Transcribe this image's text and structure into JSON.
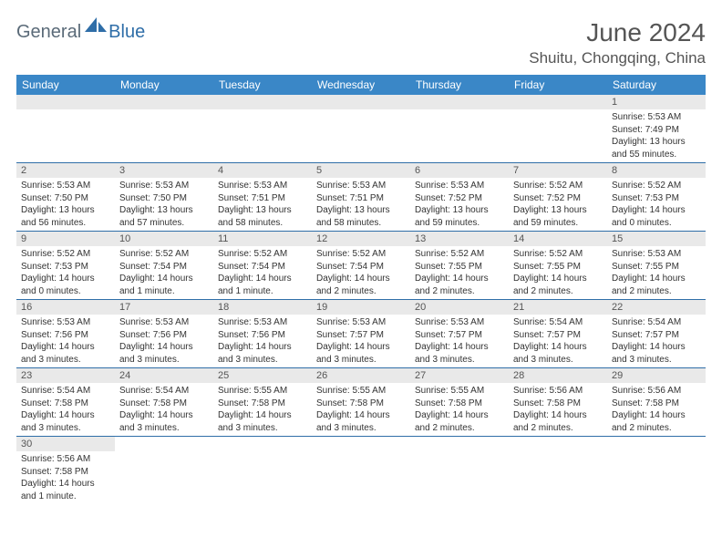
{
  "logo": {
    "text1": "General",
    "text2": "Blue"
  },
  "title": "June 2024",
  "location": "Shuitu, Chongqing, China",
  "colors": {
    "header_bg": "#3a87c7",
    "header_text": "#ffffff",
    "daynum_bg": "#e9e9e9",
    "border": "#2f6ea8",
    "title_color": "#555555",
    "logo_blue": "#2f6ea8",
    "logo_gray": "#5a6a78"
  },
  "weekdays": [
    "Sunday",
    "Monday",
    "Tuesday",
    "Wednesday",
    "Thursday",
    "Friday",
    "Saturday"
  ],
  "weeks": [
    [
      null,
      null,
      null,
      null,
      null,
      null,
      {
        "n": "1",
        "sunrise": "Sunrise: 5:53 AM",
        "sunset": "Sunset: 7:49 PM",
        "daylight": "Daylight: 13 hours and 55 minutes."
      }
    ],
    [
      {
        "n": "2",
        "sunrise": "Sunrise: 5:53 AM",
        "sunset": "Sunset: 7:50 PM",
        "daylight": "Daylight: 13 hours and 56 minutes."
      },
      {
        "n": "3",
        "sunrise": "Sunrise: 5:53 AM",
        "sunset": "Sunset: 7:50 PM",
        "daylight": "Daylight: 13 hours and 57 minutes."
      },
      {
        "n": "4",
        "sunrise": "Sunrise: 5:53 AM",
        "sunset": "Sunset: 7:51 PM",
        "daylight": "Daylight: 13 hours and 58 minutes."
      },
      {
        "n": "5",
        "sunrise": "Sunrise: 5:53 AM",
        "sunset": "Sunset: 7:51 PM",
        "daylight": "Daylight: 13 hours and 58 minutes."
      },
      {
        "n": "6",
        "sunrise": "Sunrise: 5:53 AM",
        "sunset": "Sunset: 7:52 PM",
        "daylight": "Daylight: 13 hours and 59 minutes."
      },
      {
        "n": "7",
        "sunrise": "Sunrise: 5:52 AM",
        "sunset": "Sunset: 7:52 PM",
        "daylight": "Daylight: 13 hours and 59 minutes."
      },
      {
        "n": "8",
        "sunrise": "Sunrise: 5:52 AM",
        "sunset": "Sunset: 7:53 PM",
        "daylight": "Daylight: 14 hours and 0 minutes."
      }
    ],
    [
      {
        "n": "9",
        "sunrise": "Sunrise: 5:52 AM",
        "sunset": "Sunset: 7:53 PM",
        "daylight": "Daylight: 14 hours and 0 minutes."
      },
      {
        "n": "10",
        "sunrise": "Sunrise: 5:52 AM",
        "sunset": "Sunset: 7:54 PM",
        "daylight": "Daylight: 14 hours and 1 minute."
      },
      {
        "n": "11",
        "sunrise": "Sunrise: 5:52 AM",
        "sunset": "Sunset: 7:54 PM",
        "daylight": "Daylight: 14 hours and 1 minute."
      },
      {
        "n": "12",
        "sunrise": "Sunrise: 5:52 AM",
        "sunset": "Sunset: 7:54 PM",
        "daylight": "Daylight: 14 hours and 2 minutes."
      },
      {
        "n": "13",
        "sunrise": "Sunrise: 5:52 AM",
        "sunset": "Sunset: 7:55 PM",
        "daylight": "Daylight: 14 hours and 2 minutes."
      },
      {
        "n": "14",
        "sunrise": "Sunrise: 5:52 AM",
        "sunset": "Sunset: 7:55 PM",
        "daylight": "Daylight: 14 hours and 2 minutes."
      },
      {
        "n": "15",
        "sunrise": "Sunrise: 5:53 AM",
        "sunset": "Sunset: 7:55 PM",
        "daylight": "Daylight: 14 hours and 2 minutes."
      }
    ],
    [
      {
        "n": "16",
        "sunrise": "Sunrise: 5:53 AM",
        "sunset": "Sunset: 7:56 PM",
        "daylight": "Daylight: 14 hours and 3 minutes."
      },
      {
        "n": "17",
        "sunrise": "Sunrise: 5:53 AM",
        "sunset": "Sunset: 7:56 PM",
        "daylight": "Daylight: 14 hours and 3 minutes."
      },
      {
        "n": "18",
        "sunrise": "Sunrise: 5:53 AM",
        "sunset": "Sunset: 7:56 PM",
        "daylight": "Daylight: 14 hours and 3 minutes."
      },
      {
        "n": "19",
        "sunrise": "Sunrise: 5:53 AM",
        "sunset": "Sunset: 7:57 PM",
        "daylight": "Daylight: 14 hours and 3 minutes."
      },
      {
        "n": "20",
        "sunrise": "Sunrise: 5:53 AM",
        "sunset": "Sunset: 7:57 PM",
        "daylight": "Daylight: 14 hours and 3 minutes."
      },
      {
        "n": "21",
        "sunrise": "Sunrise: 5:54 AM",
        "sunset": "Sunset: 7:57 PM",
        "daylight": "Daylight: 14 hours and 3 minutes."
      },
      {
        "n": "22",
        "sunrise": "Sunrise: 5:54 AM",
        "sunset": "Sunset: 7:57 PM",
        "daylight": "Daylight: 14 hours and 3 minutes."
      }
    ],
    [
      {
        "n": "23",
        "sunrise": "Sunrise: 5:54 AM",
        "sunset": "Sunset: 7:58 PM",
        "daylight": "Daylight: 14 hours and 3 minutes."
      },
      {
        "n": "24",
        "sunrise": "Sunrise: 5:54 AM",
        "sunset": "Sunset: 7:58 PM",
        "daylight": "Daylight: 14 hours and 3 minutes."
      },
      {
        "n": "25",
        "sunrise": "Sunrise: 5:55 AM",
        "sunset": "Sunset: 7:58 PM",
        "daylight": "Daylight: 14 hours and 3 minutes."
      },
      {
        "n": "26",
        "sunrise": "Sunrise: 5:55 AM",
        "sunset": "Sunset: 7:58 PM",
        "daylight": "Daylight: 14 hours and 3 minutes."
      },
      {
        "n": "27",
        "sunrise": "Sunrise: 5:55 AM",
        "sunset": "Sunset: 7:58 PM",
        "daylight": "Daylight: 14 hours and 2 minutes."
      },
      {
        "n": "28",
        "sunrise": "Sunrise: 5:56 AM",
        "sunset": "Sunset: 7:58 PM",
        "daylight": "Daylight: 14 hours and 2 minutes."
      },
      {
        "n": "29",
        "sunrise": "Sunrise: 5:56 AM",
        "sunset": "Sunset: 7:58 PM",
        "daylight": "Daylight: 14 hours and 2 minutes."
      }
    ],
    [
      {
        "n": "30",
        "sunrise": "Sunrise: 5:56 AM",
        "sunset": "Sunset: 7:58 PM",
        "daylight": "Daylight: 14 hours and 1 minute."
      },
      null,
      null,
      null,
      null,
      null,
      null
    ]
  ]
}
